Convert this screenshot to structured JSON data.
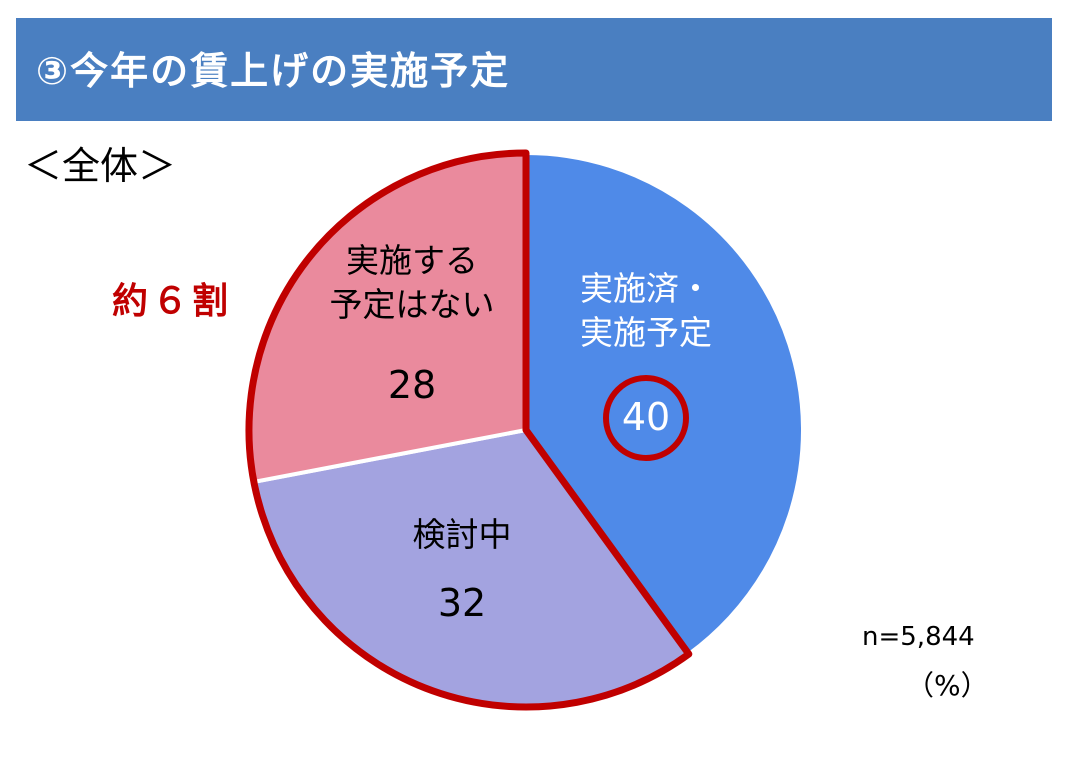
{
  "header": {
    "title": "③今年の賃上げの実施予定"
  },
  "subtitle": "＜全体＞",
  "callout": "約６割",
  "footnote": {
    "n": "n=5,844",
    "unit": "（%）"
  },
  "colors": {
    "header_bg": "#4a7fc1",
    "implemented": "#4f8ae8",
    "considering": "#a3a3e0",
    "no_plan": "#ea8a9d",
    "highlight": "#c00000"
  },
  "chart_data": {
    "type": "pie",
    "start": "12 o'clock",
    "direction": "clockwise",
    "slices": [
      {
        "label_lines": [
          "実施済・",
          "実施予定"
        ],
        "value": 40,
        "color": "#4f8ae8",
        "text_color": "#ffffff",
        "highlight_value": true
      },
      {
        "label_lines": [
          "検討中"
        ],
        "value": 32,
        "color": "#a3a3e0",
        "text_color": "#000000",
        "highlight_value": false
      },
      {
        "label_lines": [
          "実施する",
          "予定はない"
        ],
        "value": 28,
        "color": "#ea8a9d",
        "text_color": "#000000",
        "highlight_value": false
      }
    ],
    "grouped_outline": {
      "slices": [
        1,
        2
      ],
      "color": "#c00000",
      "label": "約６割"
    }
  }
}
